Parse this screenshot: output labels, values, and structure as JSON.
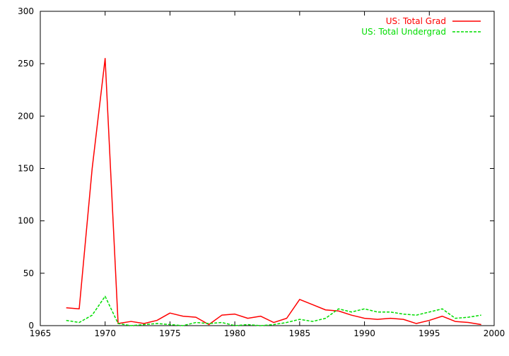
{
  "chart_data": {
    "type": "line",
    "title": "",
    "xlabel": "",
    "ylabel": "",
    "xlim": [
      1965,
      2000
    ],
    "ylim": [
      0,
      300
    ],
    "xticks": [
      1965,
      1970,
      1975,
      1980,
      1985,
      1990,
      1995,
      2000
    ],
    "yticks": [
      0,
      50,
      100,
      150,
      200,
      250,
      300
    ],
    "grid": false,
    "legend_position": "top-right",
    "x": [
      1967,
      1968,
      1969,
      1970,
      1971,
      1972,
      1973,
      1974,
      1975,
      1976,
      1977,
      1978,
      1979,
      1980,
      1981,
      1982,
      1983,
      1984,
      1985,
      1986,
      1987,
      1988,
      1989,
      1990,
      1991,
      1992,
      1993,
      1994,
      1995,
      1996,
      1997,
      1998,
      1999
    ],
    "series": [
      {
        "name": "US: Total Grad",
        "color": "#ff0000",
        "dash": "solid",
        "values": [
          17,
          16,
          150,
          255,
          2,
          4,
          2,
          5,
          12,
          9,
          8,
          1,
          10,
          11,
          7,
          9,
          3,
          7,
          25,
          20,
          15,
          14,
          10,
          7,
          6,
          7,
          6,
          2,
          5,
          9,
          4,
          3,
          1
        ]
      },
      {
        "name": "US: Total Undergrad",
        "color": "#00dd00",
        "dash": "dashed",
        "values": [
          5,
          3,
          10,
          28,
          2,
          0,
          1,
          2,
          1,
          0,
          3,
          2,
          3,
          0,
          1,
          0,
          1,
          3,
          6,
          4,
          7,
          16,
          13,
          16,
          13,
          13,
          11,
          10,
          13,
          16,
          7,
          8,
          10
        ]
      }
    ]
  }
}
